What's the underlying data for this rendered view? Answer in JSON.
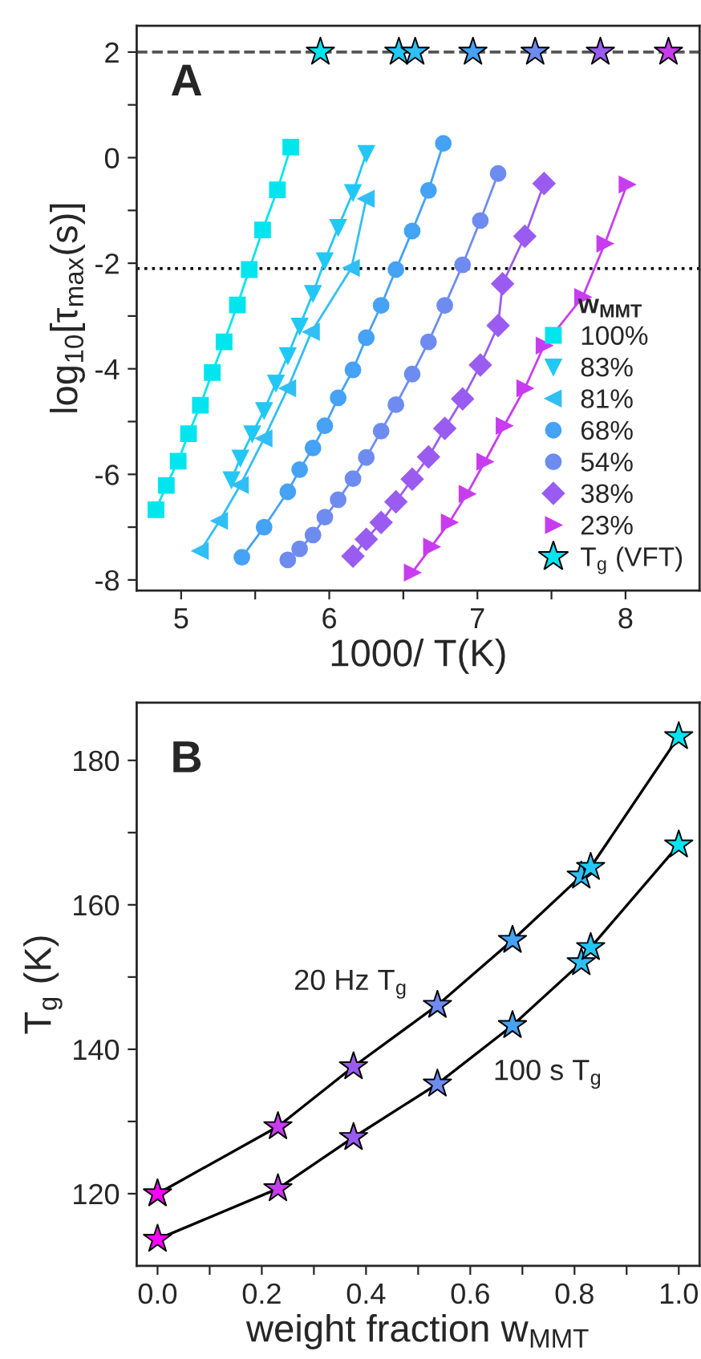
{
  "chart_data": [
    {
      "type": "line",
      "xlabel": "1000/ T(K)",
      "ylabel": "log$_{10}$[τ$_{max}$(s)]",
      "legend_title": "w$_{MMT}$",
      "legend": "bottom right",
      "grid": false,
      "line_style": "solid",
      "xlim": [
        4.7,
        8.5
      ],
      "xticks": [
        5,
        6,
        7,
        8,
        {
          "value": 5.5,
          "label": null
        },
        {
          "value": 6.5,
          "label": null
        },
        {
          "value": 7.5,
          "label": null
        }
      ],
      "ylim": [
        -8.2,
        2.5
      ],
      "yticks": [
        -8,
        -6,
        -4,
        -2,
        0,
        2,
        {
          "value": -7,
          "label": null
        },
        {
          "value": -5,
          "label": null
        },
        {
          "value": -3,
          "label": null
        },
        {
          "value": -1,
          "label": null
        },
        {
          "value": 1,
          "label": null
        }
      ],
      "ref_lines": [
        {
          "axis": "y",
          "value": 2,
          "color": "#555555",
          "line_style": "dashed"
        },
        {
          "axis": "y",
          "value": -2.1,
          "color": "#000000",
          "line_style": "dotted"
        }
      ],
      "annotations": [
        "A"
      ],
      "series": [
        {
          "name": "100%",
          "color": "#00e5ee",
          "marker": "square",
          "x": [
            5.74,
            5.65,
            5.55,
            5.46,
            5.38,
            5.29,
            5.21,
            5.13,
            5.05,
            4.98,
            4.9,
            4.83
          ],
          "values": [
            0.2,
            -0.61,
            -1.37,
            -2.12,
            -2.79,
            -3.49,
            -4.07,
            -4.69,
            -5.23,
            -5.75,
            -6.21,
            -6.67
          ]
        },
        {
          "name": "83%",
          "color": "#22c8f5",
          "marker": "triangle_down",
          "x": [
            6.25,
            6.16,
            6.06,
            5.97,
            5.89,
            5.8,
            5.72,
            5.64,
            5.56,
            5.48,
            5.4,
            5.34
          ],
          "values": [
            0.08,
            -0.66,
            -1.32,
            -1.95,
            -2.57,
            -3.19,
            -3.75,
            -4.27,
            -4.79,
            -5.23,
            -5.69,
            -6.1
          ]
        },
        {
          "name": "81%",
          "color": "#30bff5",
          "marker": "triangle_left",
          "x": [
            6.25,
            6.15,
            5.88,
            5.72,
            5.56,
            5.4,
            5.26,
            5.13
          ],
          "values": [
            -0.78,
            -2.09,
            -3.3,
            -4.37,
            -5.32,
            -6.2,
            -6.88,
            -7.45
          ]
        },
        {
          "name": "68%",
          "color": "#45a2f5",
          "marker": "circle",
          "x": [
            6.77,
            6.67,
            6.56,
            6.45,
            6.35,
            6.25,
            6.16,
            6.06,
            5.97,
            5.89,
            5.8,
            5.72,
            5.56,
            5.41
          ],
          "values": [
            0.27,
            -0.62,
            -1.39,
            -2.12,
            -2.8,
            -3.41,
            -4.02,
            -4.55,
            -5.08,
            -5.5,
            -5.91,
            -6.33,
            -7.0,
            -7.57
          ]
        },
        {
          "name": "54%",
          "color": "#6e8cf0",
          "marker": "circle",
          "x": [
            7.14,
            7.02,
            6.9,
            6.78,
            6.67,
            6.56,
            6.45,
            6.35,
            6.25,
            6.16,
            6.06,
            5.97,
            5.89,
            5.8,
            5.72
          ],
          "values": [
            -0.3,
            -1.19,
            -2.03,
            -2.8,
            -3.49,
            -4.1,
            -4.68,
            -5.18,
            -5.68,
            -6.08,
            -6.48,
            -6.81,
            -7.15,
            -7.41,
            -7.62
          ]
        },
        {
          "name": "38%",
          "color": "#9a5cf0",
          "marker": "diamond",
          "x": [
            7.45,
            7.32,
            7.17,
            7.14,
            7.02,
            6.9,
            6.78,
            6.67,
            6.56,
            6.45,
            6.35,
            6.25,
            6.16
          ],
          "values": [
            -0.49,
            -1.49,
            -2.39,
            -3.18,
            -3.93,
            -4.57,
            -5.13,
            -5.67,
            -6.09,
            -6.52,
            -6.91,
            -7.23,
            -7.55
          ]
        },
        {
          "name": "23%",
          "color": "#c83cf0",
          "marker": "triangle_right",
          "x": [
            8.01,
            7.86,
            7.71,
            7.45,
            7.32,
            7.18,
            7.05,
            6.93,
            6.81,
            6.69,
            6.56
          ],
          "values": [
            -0.51,
            -1.63,
            -2.64,
            -3.56,
            -4.37,
            -5.08,
            -5.76,
            -6.37,
            -6.91,
            -7.37,
            -7.86
          ]
        },
        {
          "name": "T$_{g}$ (VFT)",
          "type": "scatter",
          "marker": "star",
          "color": "#00e5ee",
          "colors": [
            "#00e5ee",
            "#22c8f5",
            "#30bff5",
            "#45a2f5",
            "#6e8cf0",
            "#9a5cf0",
            "#c83cf0"
          ],
          "x": [
            5.94,
            6.47,
            6.58,
            6.97,
            7.39,
            7.83,
            8.29
          ],
          "values": [
            2,
            2,
            2,
            2,
            2,
            2,
            2
          ]
        }
      ]
    },
    {
      "type": "line",
      "xlabel": "weight fraction w$_{MMT}$",
      "ylabel": "T$_{g}$ (K)",
      "grid": false,
      "legend": false,
      "marker": "star",
      "xlim": [
        -0.04,
        1.04
      ],
      "xticks": [
        {
          "value": 0,
          "label": "0.0"
        },
        0.2,
        0.4,
        0.6,
        0.8,
        {
          "value": 1,
          "label": "1.0"
        },
        {
          "value": 0.1,
          "label": null
        },
        {
          "value": 0.3,
          "label": null
        },
        {
          "value": 0.5,
          "label": null
        },
        {
          "value": 0.7,
          "label": null
        },
        {
          "value": 0.9,
          "label": null
        }
      ],
      "ylim": [
        110,
        188
      ],
      "yticks": [
        120,
        140,
        160,
        180,
        {
          "value": 130,
          "label": null
        },
        {
          "value": 150,
          "label": null
        },
        {
          "value": 170,
          "label": null
        }
      ],
      "annotations": [
        "B",
        "20 Hz T$_{g}$",
        "100 s T$_{g}$"
      ],
      "series": [
        {
          "color": "#000000",
          "colors": [
            "#ff00ff",
            "#c83cf0",
            "#9a5cf0",
            "#6e8cf0",
            "#45a2f5",
            "#30bff5",
            "#22c8f5",
            "#00e5ee"
          ],
          "x": [
            0,
            0.231,
            0.376,
            0.537,
            0.681,
            0.813,
            0.831,
            1.0
          ],
          "values": [
            120.0,
            129.3,
            137.6,
            146.1,
            155.1,
            164.0,
            165.2,
            183.3
          ]
        },
        {
          "color": "#000000",
          "colors": [
            "#ff00ff",
            "#c83cf0",
            "#9a5cf0",
            "#6e8cf0",
            "#45a2f5",
            "#30bff5",
            "#22c8f5",
            "#00e5ee"
          ],
          "x": [
            0,
            0.231,
            0.376,
            0.537,
            0.681,
            0.813,
            0.831,
            1.0
          ],
          "values": [
            113.7,
            120.7,
            127.8,
            135.2,
            143.3,
            152.0,
            154.1,
            168.3
          ]
        }
      ]
    }
  ]
}
